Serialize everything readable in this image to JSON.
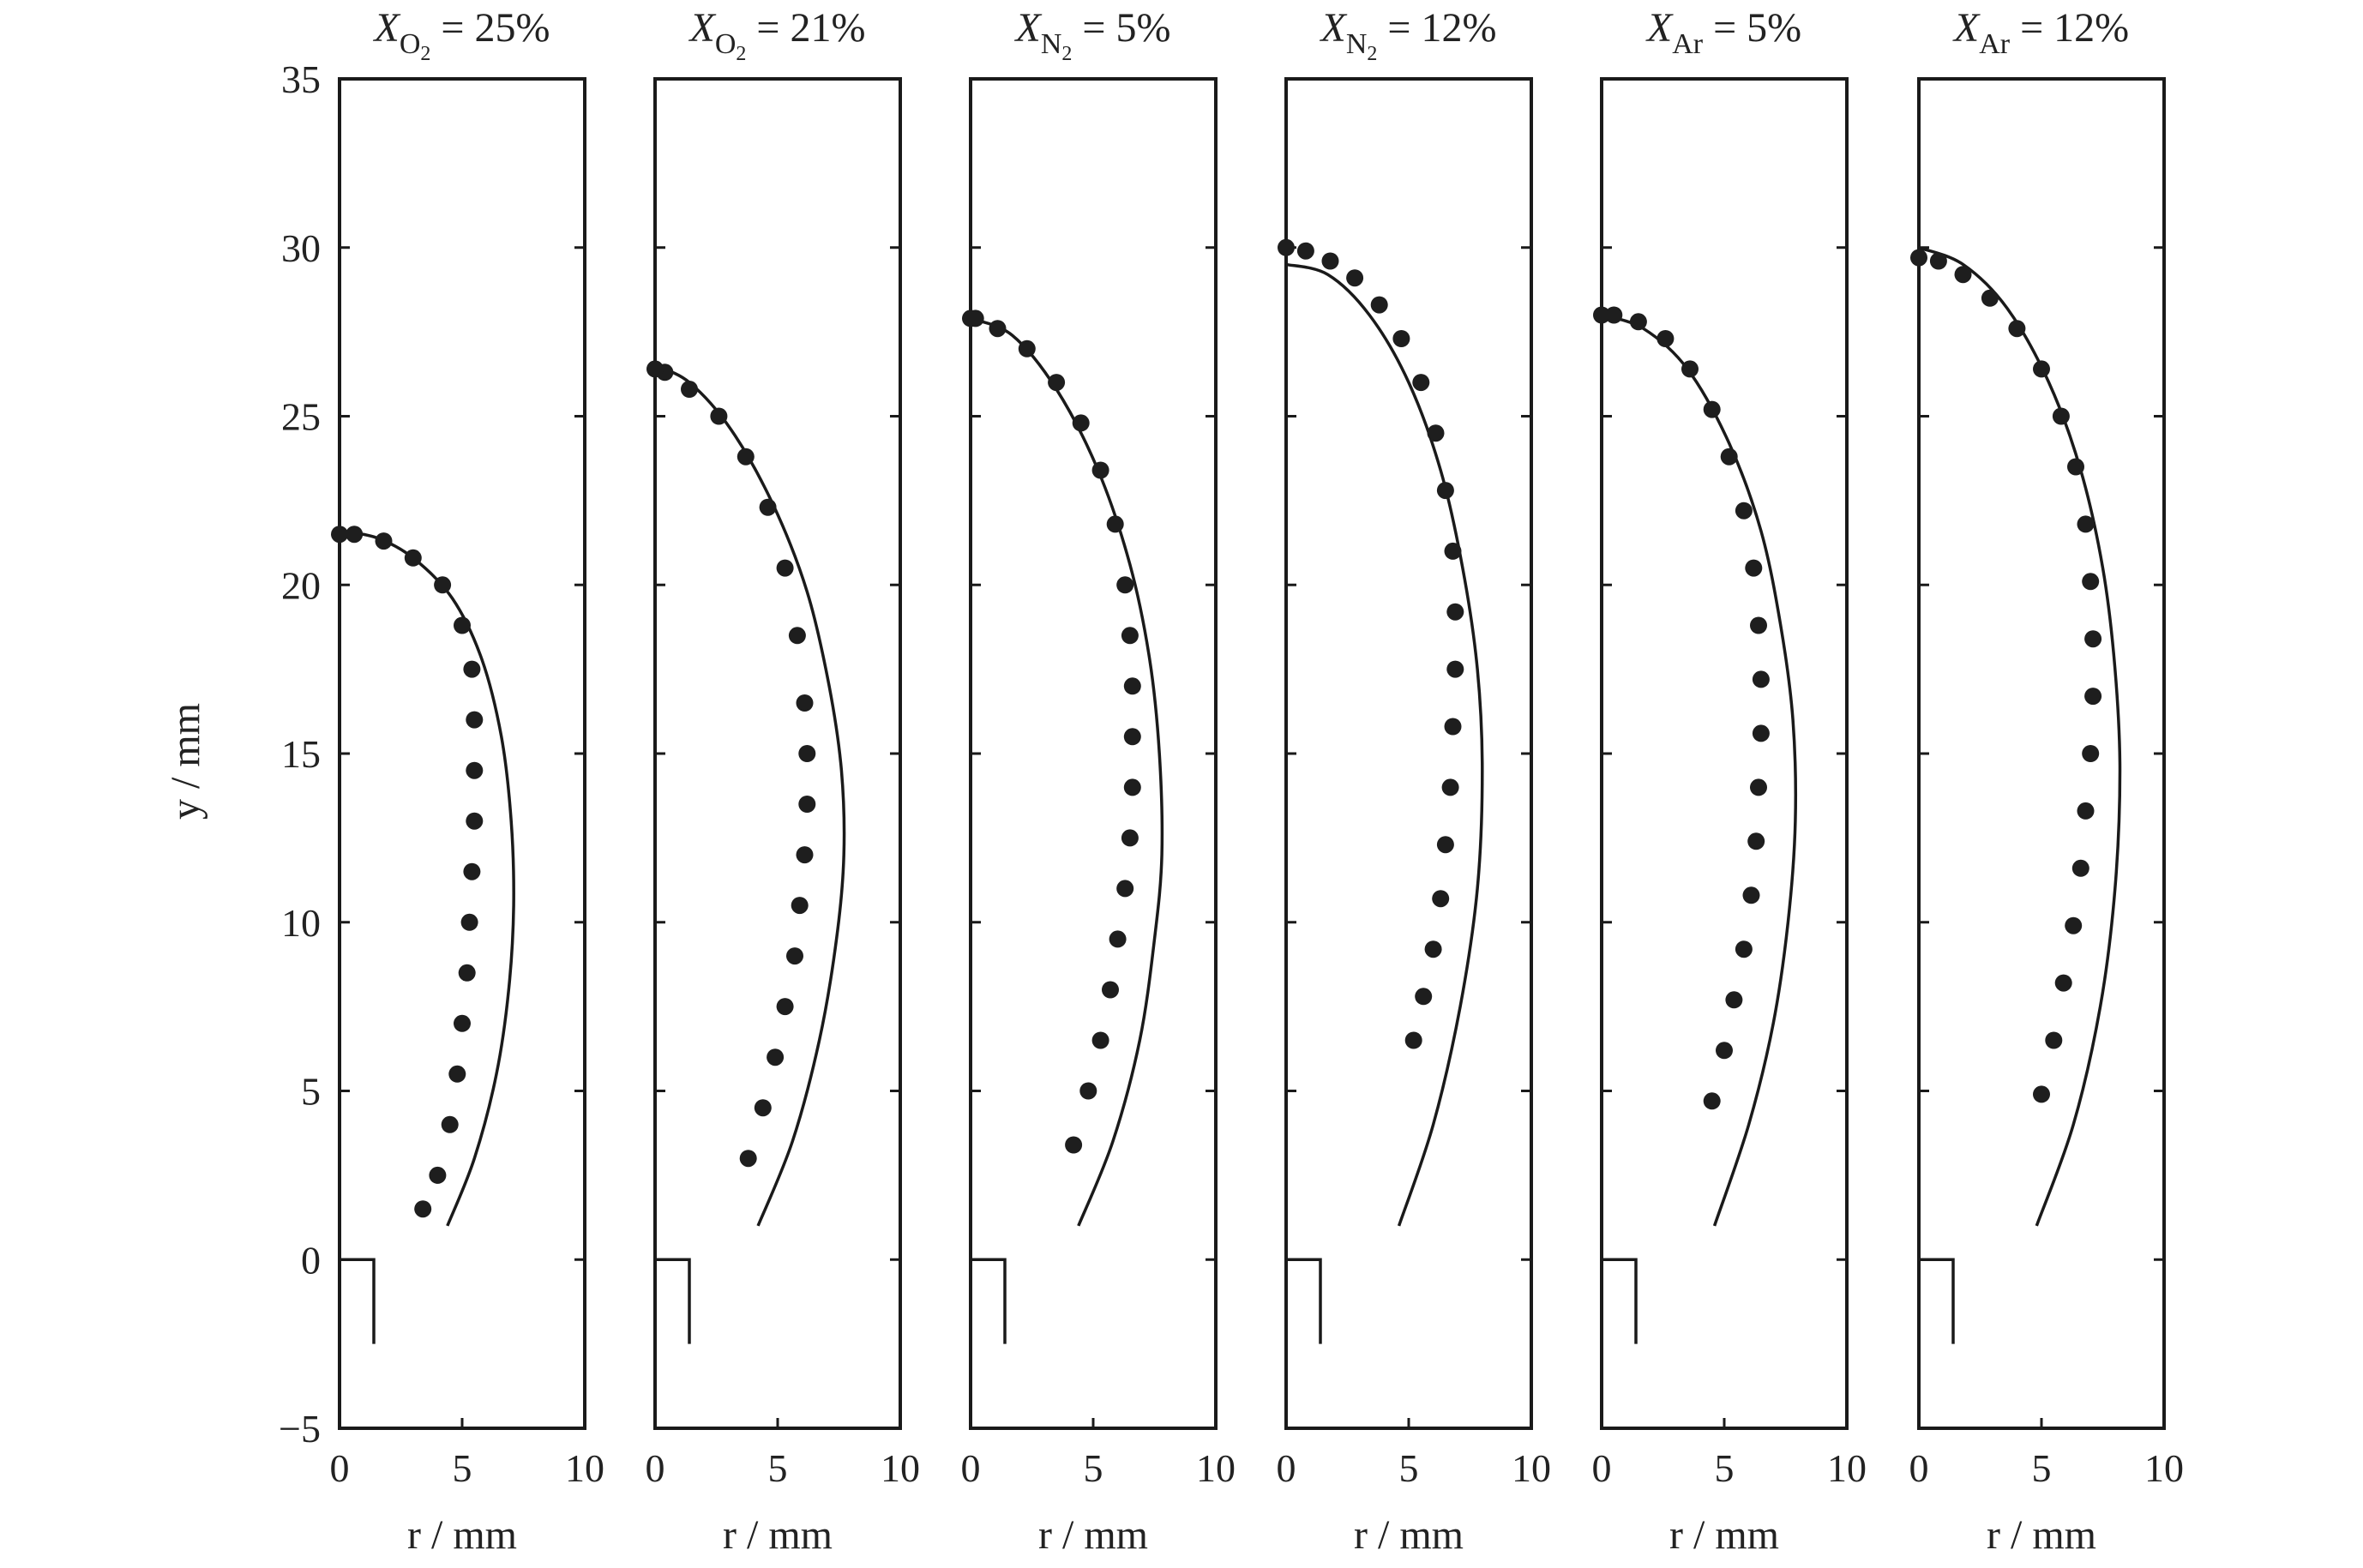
{
  "chart_data": {
    "type": "scatter",
    "ylabel": "y / mm",
    "xlabel": "r / mm",
    "xlim": [
      0,
      10
    ],
    "ylim": [
      -5,
      35
    ],
    "xticks": [
      "0",
      "5",
      "10"
    ],
    "yticks": [
      "−5",
      "0",
      "5",
      "10",
      "15",
      "20",
      "25",
      "30",
      "35"
    ],
    "ytick_values": [
      -5,
      0,
      5,
      10,
      15,
      20,
      25,
      30,
      35
    ],
    "grid": false,
    "burner_outline": {
      "r": [
        0,
        1.4,
        1.4
      ],
      "y": [
        0,
        0,
        -2.5
      ]
    },
    "panels": [
      {
        "title": {
          "var": "X",
          "sub": "O",
          "subsub": "2",
          "rest": " = 25%"
        },
        "experiment": {
          "r": [
            3.4,
            4.0,
            4.5,
            4.8,
            5.0,
            5.2,
            5.3,
            5.4,
            5.5,
            5.5,
            5.5,
            5.4,
            5.0,
            4.2,
            3.0,
            1.8,
            0.6,
            0.0
          ],
          "y": [
            1.5,
            2.5,
            4.0,
            5.5,
            7.0,
            8.5,
            10.0,
            11.5,
            13.0,
            14.5,
            16.0,
            17.5,
            18.8,
            20.0,
            20.8,
            21.3,
            21.5,
            21.5
          ]
        },
        "simulation": {
          "r": [
            4.4,
            5.5,
            6.4,
            6.9,
            7.1,
            7.0,
            6.6,
            5.8,
            4.6,
            3.0,
            1.5,
            0.0
          ],
          "y": [
            1.0,
            3.0,
            5.5,
            8.0,
            10.5,
            13.0,
            15.5,
            17.8,
            19.6,
            20.8,
            21.4,
            21.6
          ]
        }
      },
      {
        "title": {
          "var": "X",
          "sub": "O",
          "subsub": "2",
          "rest": " = 21%"
        },
        "experiment": {
          "r": [
            3.8,
            4.4,
            4.9,
            5.3,
            5.7,
            5.9,
            6.1,
            6.2,
            6.2,
            6.1,
            5.8,
            5.3,
            4.6,
            3.7,
            2.6,
            1.4,
            0.4,
            0.0
          ],
          "y": [
            3.0,
            4.5,
            6.0,
            7.5,
            9.0,
            10.5,
            12.0,
            13.5,
            15.0,
            16.5,
            18.5,
            20.5,
            22.3,
            23.8,
            25.0,
            25.8,
            26.3,
            26.4
          ]
        },
        "simulation": {
          "r": [
            4.2,
            5.6,
            6.7,
            7.4,
            7.7,
            7.6,
            7.1,
            6.2,
            4.8,
            3.1,
            1.4,
            0.0
          ],
          "y": [
            1.0,
            3.5,
            6.5,
            9.5,
            12.0,
            14.5,
            17.0,
            19.8,
            22.4,
            24.6,
            26.0,
            26.5
          ]
        }
      },
      {
        "title": {
          "var": "X",
          "sub": "N",
          "subsub": "2",
          "rest": " = 5%"
        },
        "experiment": {
          "r": [
            4.2,
            4.8,
            5.3,
            5.7,
            6.0,
            6.3,
            6.5,
            6.6,
            6.6,
            6.6,
            6.5,
            6.3,
            5.9,
            5.3,
            4.5,
            3.5,
            2.3,
            1.1,
            0.2,
            0.0
          ],
          "y": [
            3.4,
            5.0,
            6.5,
            8.0,
            9.5,
            11.0,
            12.5,
            14.0,
            15.5,
            17.0,
            18.5,
            20.0,
            21.8,
            23.4,
            24.8,
            26.0,
            27.0,
            27.6,
            27.9,
            27.9
          ]
        },
        "simulation": {
          "r": [
            4.4,
            5.8,
            6.9,
            7.5,
            7.8,
            7.7,
            7.3,
            6.5,
            5.2,
            3.5,
            1.7,
            0.0
          ],
          "y": [
            1.0,
            3.5,
            6.5,
            9.5,
            12.0,
            15.0,
            17.8,
            20.6,
            23.4,
            25.8,
            27.4,
            27.9
          ]
        }
      },
      {
        "title": {
          "var": "X",
          "sub": "N",
          "subsub": "2",
          "rest": " = 12%"
        },
        "experiment": {
          "r": [
            5.2,
            5.6,
            6.0,
            6.3,
            6.5,
            6.7,
            6.8,
            6.9,
            6.9,
            6.8,
            6.5,
            6.1,
            5.5,
            4.7,
            3.8,
            2.8,
            1.8,
            0.8,
            0.0
          ],
          "y": [
            6.5,
            7.8,
            9.2,
            10.7,
            12.3,
            14.0,
            15.8,
            17.5,
            19.2,
            21.0,
            22.8,
            24.5,
            26.0,
            27.3,
            28.3,
            29.1,
            29.6,
            29.9,
            30.0
          ]
        },
        "simulation": {
          "r": [
            4.6,
            6.0,
            7.1,
            7.8,
            8.0,
            7.8,
            7.2,
            6.3,
            5.0,
            3.4,
            1.7,
            0.0
          ],
          "y": [
            1.0,
            4.0,
            7.5,
            11.0,
            14.5,
            17.5,
            20.5,
            23.4,
            26.0,
            28.0,
            29.2,
            29.5
          ]
        }
      },
      {
        "title": {
          "var": "X",
          "sub": "Ar",
          "subsub": "",
          "rest": " = 5%"
        },
        "experiment": {
          "r": [
            4.5,
            5.0,
            5.4,
            5.8,
            6.1,
            6.3,
            6.4,
            6.5,
            6.5,
            6.4,
            6.2,
            5.8,
            5.2,
            4.5,
            3.6,
            2.6,
            1.5,
            0.5,
            0.0
          ],
          "y": [
            4.7,
            6.2,
            7.7,
            9.2,
            10.8,
            12.4,
            14.0,
            15.6,
            17.2,
            18.8,
            20.5,
            22.2,
            23.8,
            25.2,
            26.4,
            27.3,
            27.8,
            28.0,
            28.0
          ]
        },
        "simulation": {
          "r": [
            4.6,
            6.0,
            7.0,
            7.6,
            7.9,
            7.8,
            7.3,
            6.5,
            5.2,
            3.5,
            1.7,
            0.0
          ],
          "y": [
            1.0,
            4.0,
            7.0,
            10.0,
            13.0,
            16.0,
            18.8,
            21.6,
            24.2,
            26.4,
            27.6,
            28.0
          ]
        }
      },
      {
        "title": {
          "var": "X",
          "sub": "Ar",
          "subsub": "",
          "rest": " = 12%"
        },
        "experiment": {
          "r": [
            5.0,
            5.5,
            5.9,
            6.3,
            6.6,
            6.8,
            7.0,
            7.1,
            7.1,
            7.0,
            6.8,
            6.4,
            5.8,
            5.0,
            4.0,
            2.9,
            1.8,
            0.8,
            0.0
          ],
          "y": [
            4.9,
            6.5,
            8.2,
            9.9,
            11.6,
            13.3,
            15.0,
            16.7,
            18.4,
            20.1,
            21.8,
            23.5,
            25.0,
            26.4,
            27.6,
            28.5,
            29.2,
            29.6,
            29.7
          ]
        },
        "simulation": {
          "r": [
            4.8,
            6.3,
            7.4,
            8.0,
            8.2,
            8.0,
            7.5,
            6.6,
            5.3,
            3.6,
            1.8,
            0.0
          ],
          "y": [
            1.0,
            4.0,
            7.5,
            11.0,
            14.5,
            17.5,
            20.5,
            23.4,
            26.0,
            28.2,
            29.5,
            30.0
          ]
        }
      }
    ]
  }
}
